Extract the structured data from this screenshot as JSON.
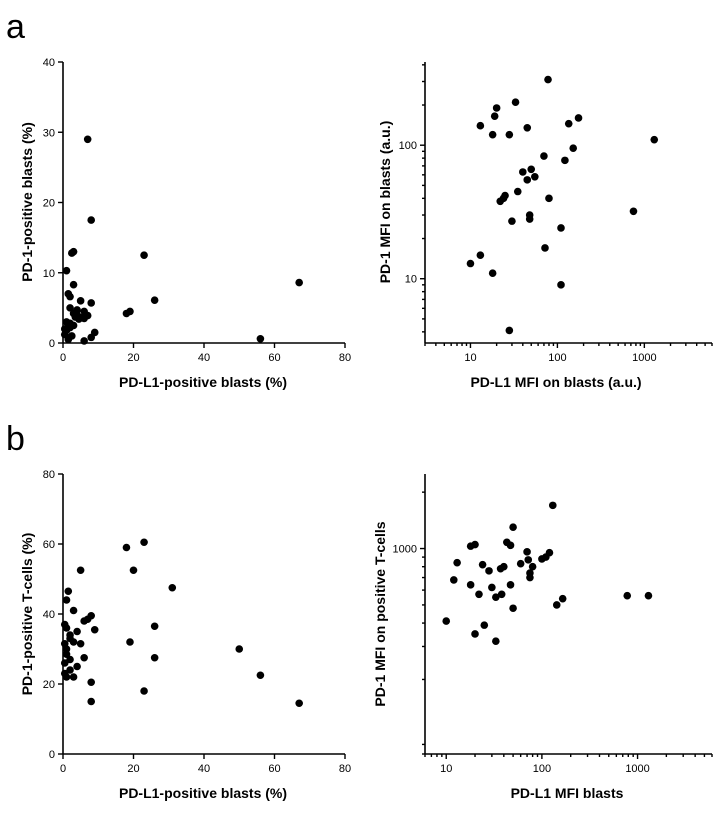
{
  "panels": {
    "a": "a",
    "b": "b"
  },
  "chart_data": [
    {
      "type": "scatter",
      "panel": "a",
      "xlabel": "PD-L1-positive blasts (%)",
      "ylabel": "PD-1-positive blasts (%)",
      "xscale": "linear",
      "yscale": "linear",
      "xlim": [
        0,
        80
      ],
      "ylim": [
        0,
        40
      ],
      "xticks": [
        0,
        20,
        40,
        60,
        80
      ],
      "yticks": [
        0,
        10,
        20,
        30,
        40
      ],
      "x": [
        7,
        8,
        3,
        2.5,
        23,
        1,
        3,
        67,
        26,
        2,
        1.5,
        8,
        19,
        18,
        5,
        2,
        4,
        6,
        3,
        7,
        9,
        6,
        8,
        56,
        1,
        1.5,
        0.5,
        2,
        3.5,
        4.5,
        2,
        1,
        0.5,
        6,
        2.5,
        1.5,
        4,
        5,
        3
      ],
      "y": [
        29,
        17.5,
        13,
        12.8,
        12.5,
        10.3,
        8.3,
        8.6,
        6.1,
        6.6,
        7,
        5.7,
        4.5,
        4.2,
        6,
        5,
        4.7,
        4.5,
        4.2,
        3.9,
        1.5,
        3.5,
        0.8,
        0.6,
        3,
        2.5,
        2,
        2.2,
        3.7,
        3.4,
        2.8,
        1.8,
        1.2,
        0.3,
        1,
        0.5,
        4,
        3.6,
        2.5
      ]
    },
    {
      "type": "scatter",
      "panel": "a",
      "xlabel": "PD-L1 MFI on blasts (a.u.)",
      "ylabel": "PD-1 MFI on blasts (a.u.)",
      "xscale": "log",
      "yscale": "log",
      "xlim": [
        3,
        6000
      ],
      "ylim": [
        3.3,
        420
      ],
      "xticks": [
        10,
        100,
        1000
      ],
      "yticks": [
        10,
        100
      ],
      "x": [
        78,
        20,
        33,
        19,
        13,
        45,
        28,
        18,
        135,
        175,
        152,
        122,
        70,
        1300,
        40,
        50,
        55,
        45,
        35,
        25,
        24,
        48,
        48,
        30,
        110,
        80,
        110,
        750,
        72,
        18,
        13,
        10,
        28,
        22
      ],
      "y": [
        310,
        190,
        210,
        165,
        140,
        135,
        120,
        120,
        145,
        160,
        95,
        77,
        83,
        110,
        63,
        66,
        58,
        55,
        45,
        42,
        40,
        30,
        28,
        27,
        24,
        40,
        9,
        32,
        17,
        11,
        15,
        13,
        4.1,
        38
      ]
    },
    {
      "type": "scatter",
      "panel": "b",
      "xlabel": "PD-L1-positive blasts (%)",
      "ylabel": "PD-1-positive T-cells (%)",
      "xscale": "linear",
      "yscale": "linear",
      "xlim": [
        0,
        80
      ],
      "ylim": [
        0,
        80
      ],
      "xticks": [
        0,
        20,
        40,
        60,
        80
      ],
      "yticks": [
        0,
        20,
        40,
        60,
        80
      ],
      "x": [
        23,
        18,
        20,
        5,
        31,
        1.5,
        1,
        3,
        26,
        19,
        0.5,
        1,
        2,
        4,
        6,
        8,
        9,
        0.5,
        1,
        2,
        3,
        5,
        7,
        1,
        0.5,
        2,
        4,
        50,
        26,
        6,
        56,
        1,
        2,
        3,
        0.5,
        8,
        8,
        23,
        67
      ],
      "y": [
        60.5,
        59,
        52.5,
        52.5,
        47.5,
        46.5,
        44,
        41,
        36.5,
        32,
        37,
        36,
        34,
        35,
        38,
        39.5,
        35.5,
        31.5,
        30,
        33,
        32,
        31.5,
        38.5,
        28.5,
        26,
        27,
        25,
        30,
        27.5,
        27.5,
        22.5,
        22,
        24,
        22,
        23,
        20.5,
        15,
        18,
        14.5
      ]
    },
    {
      "type": "scatter",
      "panel": "b",
      "xlabel": "PD-L1 MFI blasts",
      "ylabel": "PD-1 MFI on positive T-cells",
      "xscale": "log",
      "yscale": "log",
      "xlim": [
        6,
        6000
      ],
      "ylim": [
        80,
        2500
      ],
      "xticks": [
        10,
        100,
        1000
      ],
      "yticks": [
        1000
      ],
      "x": [
        130,
        50,
        20,
        18,
        43,
        47,
        70,
        110,
        120,
        100,
        13,
        24,
        28,
        37,
        40,
        60,
        72,
        80,
        12,
        18,
        30,
        47,
        22,
        75,
        75,
        33,
        38,
        165,
        143,
        50,
        780,
        1300,
        10,
        25,
        20,
        33
      ],
      "y": [
        1700,
        1300,
        1050,
        1030,
        1080,
        1040,
        960,
        900,
        950,
        880,
        840,
        820,
        760,
        780,
        800,
        830,
        870,
        800,
        680,
        640,
        620,
        640,
        570,
        740,
        700,
        550,
        570,
        540,
        500,
        480,
        560,
        560,
        410,
        390,
        350,
        320
      ]
    }
  ]
}
